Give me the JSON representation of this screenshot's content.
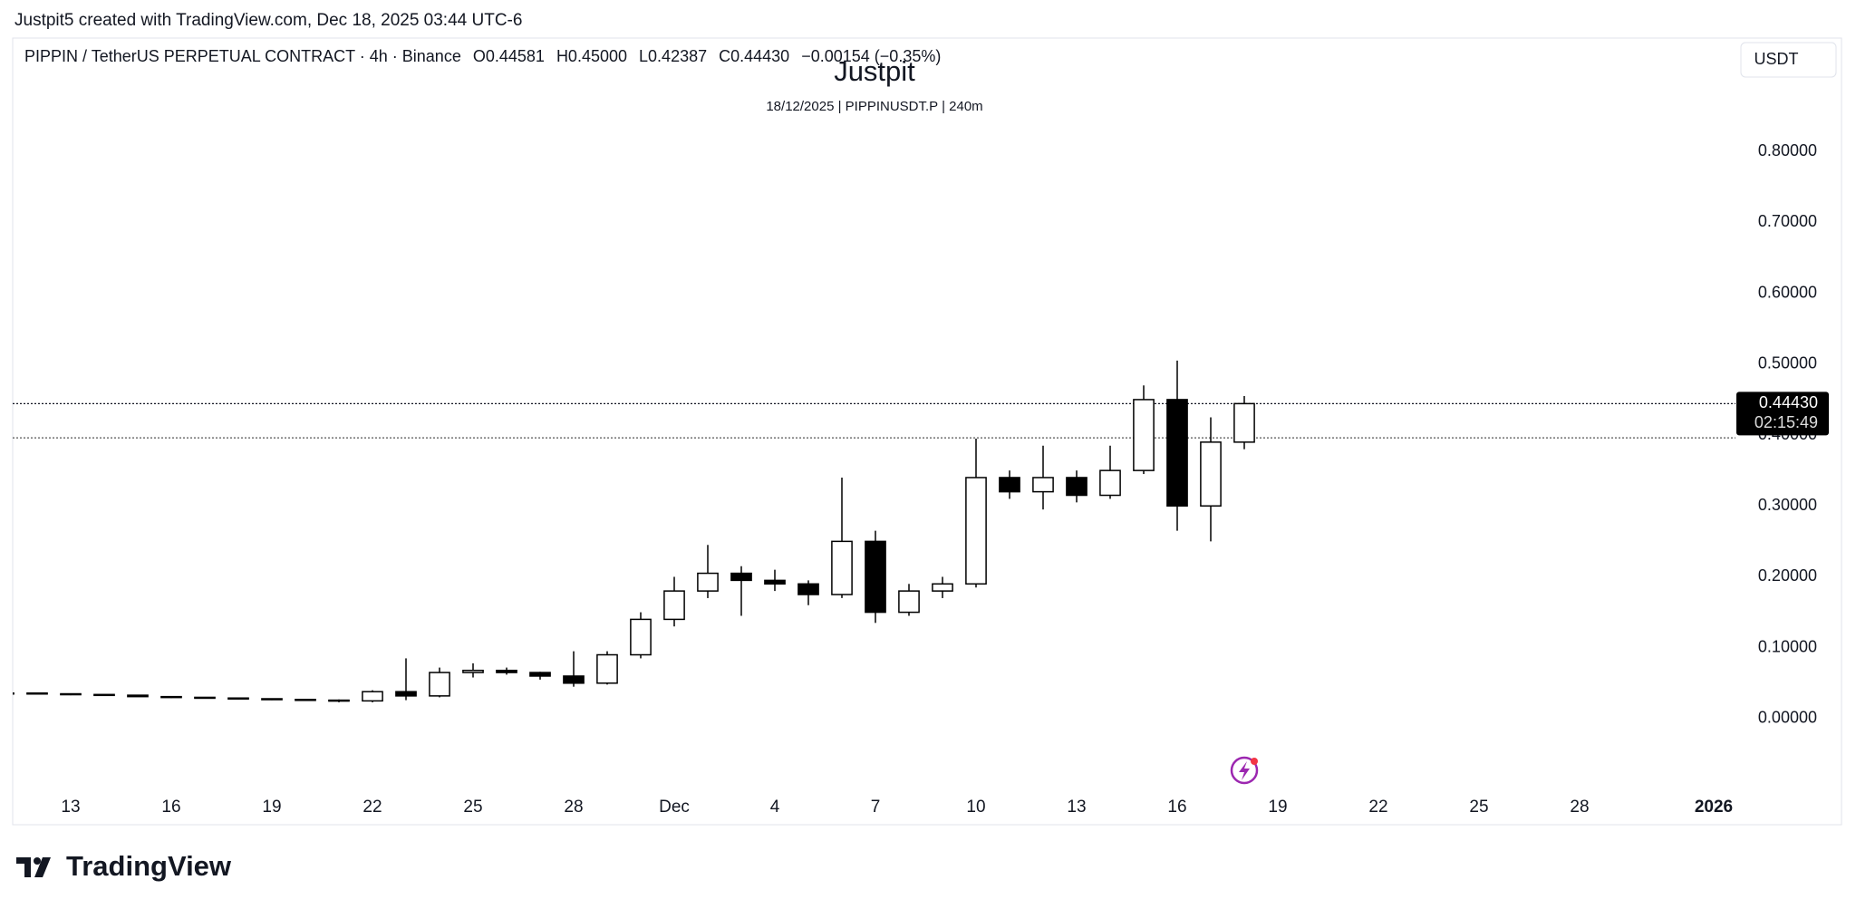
{
  "header": "Justpit5 created with TradingView.com, Dec 18, 2025 03:44 UTC-6",
  "chart_data": {
    "type": "candlestick",
    "title": "Justpit",
    "subtitle": "18/12/2025 | PIPPINUSDT.P | 240m",
    "symbol": "PIPPIN / TetherUS PERPETUAL CONTRACT · 4h · Binance",
    "legend_values": [
      "O0.44581",
      "H0.45000",
      "L0.42387",
      "C0.44430",
      "−0.00154 (−0.35%)"
    ],
    "currency": "USDT",
    "x": [
      "2025-11-11",
      "2025-11-12",
      "2025-11-13",
      "2025-11-14",
      "2025-11-15",
      "2025-11-16",
      "2025-11-17",
      "2025-11-18",
      "2025-11-19",
      "2025-11-20",
      "2025-11-21",
      "2025-11-22",
      "2025-11-23",
      "2025-11-24",
      "2025-11-25",
      "2025-11-26",
      "2025-11-27",
      "2025-11-28",
      "2025-11-29",
      "2025-11-30",
      "2025-12-01",
      "2025-12-02",
      "2025-12-03",
      "2025-12-04",
      "2025-12-05",
      "2025-12-06",
      "2025-12-07",
      "2025-12-08",
      "2025-12-09",
      "2025-12-10",
      "2025-12-11",
      "2025-12-12",
      "2025-12-13",
      "2025-12-14",
      "2025-12-15",
      "2025-12-16",
      "2025-12-17",
      "2025-12-18"
    ],
    "open": [
      0.036,
      0.036,
      0.035,
      0.034,
      0.033,
      0.031,
      0.03,
      0.029,
      0.028,
      0.027,
      0.026,
      0.025,
      0.038,
      0.032,
      0.065,
      0.068,
      0.065,
      0.06,
      0.05,
      0.09,
      0.14,
      0.18,
      0.205,
      0.195,
      0.19,
      0.175,
      0.25,
      0.15,
      0.18,
      0.19,
      0.34,
      0.32,
      0.34,
      0.315,
      0.35,
      0.45,
      0.3,
      0.39
    ],
    "high": [
      0.037,
      0.036,
      0.035,
      0.034,
      0.033,
      0.031,
      0.03,
      0.029,
      0.028,
      0.027,
      0.027,
      0.04,
      0.085,
      0.072,
      0.078,
      0.072,
      0.066,
      0.095,
      0.095,
      0.15,
      0.2,
      0.245,
      0.215,
      0.21,
      0.195,
      0.34,
      0.265,
      0.19,
      0.2,
      0.395,
      0.35,
      0.385,
      0.35,
      0.385,
      0.47,
      0.505,
      0.425,
      0.455
    ],
    "low": [
      0.035,
      0.034,
      0.033,
      0.032,
      0.031,
      0.029,
      0.028,
      0.027,
      0.026,
      0.025,
      0.023,
      0.023,
      0.026,
      0.03,
      0.058,
      0.062,
      0.055,
      0.045,
      0.048,
      0.085,
      0.13,
      0.17,
      0.145,
      0.18,
      0.16,
      0.17,
      0.135,
      0.145,
      0.17,
      0.185,
      0.31,
      0.295,
      0.305,
      0.31,
      0.345,
      0.265,
      0.25,
      0.38
    ],
    "close": [
      0.036,
      0.035,
      0.034,
      0.033,
      0.031,
      0.03,
      0.029,
      0.028,
      0.027,
      0.026,
      0.025,
      0.038,
      0.032,
      0.065,
      0.068,
      0.065,
      0.06,
      0.05,
      0.09,
      0.14,
      0.18,
      0.205,
      0.195,
      0.19,
      0.175,
      0.25,
      0.15,
      0.18,
      0.19,
      0.34,
      0.32,
      0.34,
      0.315,
      0.35,
      0.45,
      0.3,
      0.39,
      0.4443
    ],
    "up_color": "#ffffff",
    "down_color": "#000000",
    "wick_color": "#000000",
    "xlim": [
      "2025-11-11",
      "2026-01-02"
    ],
    "xticks": [
      {
        "value": "2025-11-13",
        "label": "13"
      },
      {
        "value": "2025-11-16",
        "label": "16"
      },
      {
        "value": "2025-11-19",
        "label": "19"
      },
      {
        "value": "2025-11-22",
        "label": "22"
      },
      {
        "value": "2025-11-25",
        "label": "25"
      },
      {
        "value": "2025-11-28",
        "label": "28"
      },
      {
        "value": "2025-12-01",
        "label": "Dec"
      },
      {
        "value": "2025-12-04",
        "label": "4"
      },
      {
        "value": "2025-12-07",
        "label": "7"
      },
      {
        "value": "2025-12-10",
        "label": "10"
      },
      {
        "value": "2025-12-13",
        "label": "13"
      },
      {
        "value": "2025-12-16",
        "label": "16"
      },
      {
        "value": "2025-12-19",
        "label": "19"
      },
      {
        "value": "2025-12-22",
        "label": "22"
      },
      {
        "value": "2025-12-25",
        "label": "25"
      },
      {
        "value": "2025-12-28",
        "label": "28"
      },
      {
        "value": "2026-01-01",
        "label": "2026"
      }
    ],
    "ylim": [
      -0.096,
      0.96
    ],
    "yticks": [
      {
        "value": 0,
        "label": "0.00000"
      },
      {
        "value": 0.1,
        "label": "0.10000"
      },
      {
        "value": 0.2,
        "label": "0.20000"
      },
      {
        "value": 0.3,
        "label": "0.30000"
      },
      {
        "value": 0.4,
        "label": "0.40000"
      },
      {
        "value": 0.5,
        "label": "0.50000"
      },
      {
        "value": 0.6,
        "label": "0.60000"
      },
      {
        "value": 0.7,
        "label": "0.70000"
      },
      {
        "value": 0.8,
        "label": "0.80000"
      }
    ],
    "last_price": {
      "value": 0.4443,
      "label": "0.44430"
    },
    "countdown": "02:15:49",
    "horizontal_line": 0.396
  },
  "footer": "TradingView"
}
